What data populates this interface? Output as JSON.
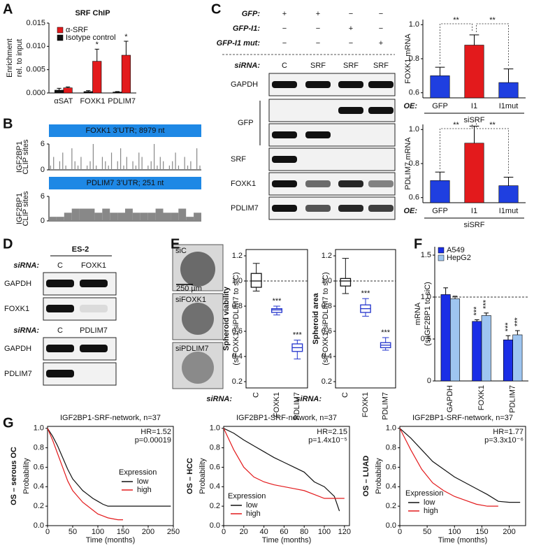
{
  "panel_labels": [
    "A",
    "B",
    "C",
    "D",
    "E",
    "F",
    "G"
  ],
  "chart_data": [
    {
      "type": "bar",
      "title": "SRF ChIP",
      "ylabel": [
        "Enrichment",
        "rel. to input"
      ],
      "categories": [
        "αSAT",
        "FOXK1",
        "PDLIM7"
      ],
      "series": [
        {
          "name": "α-SRF",
          "color": "#e31a1c",
          "values": [
            0.0011,
            0.0068,
            0.0081
          ],
          "errors": [
            0.0002,
            0.0026,
            0.003
          ],
          "significance": [
            null,
            "*",
            "*"
          ]
        },
        {
          "name": "Isotype control",
          "color": "#111111",
          "values": [
            0.0006,
            0.0003,
            0.0002
          ],
          "errors": [
            0.0004,
            0.0002,
            0.0001
          ]
        }
      ],
      "ylim": [
        0,
        0.015
      ],
      "yticks": [
        {
          "value": 0,
          "label": "0.000"
        },
        0.005,
        {
          "value": 0.01,
          "label": "0.010"
        },
        0.015
      ]
    },
    {
      "type": "spikes",
      "title": "FOXK1 3’UTR; 8979 nt",
      "ylabel": [
        "IGF2BP1",
        "CLIP sites"
      ],
      "color": "#888888",
      "ylim": [
        0,
        6
      ],
      "yticks": [
        0,
        6
      ],
      "values": [
        1,
        3,
        0,
        2,
        4,
        1,
        0,
        5,
        2,
        1,
        3,
        0,
        1,
        2,
        6,
        1,
        0,
        3,
        2,
        1,
        4,
        0,
        2,
        5,
        1,
        3,
        0,
        2,
        1,
        4,
        3,
        0,
        1,
        2,
        6,
        1,
        3,
        2,
        0,
        1,
        2,
        4,
        1,
        0,
        3,
        1,
        2,
        0,
        5,
        1
      ]
    },
    {
      "type": "steps",
      "title": "PDLIM7 3’UTR; 251 nt",
      "ylabel": [
        "IGF2BP1",
        "CLIP sites"
      ],
      "color": "#888888",
      "ylim": [
        0,
        6
      ],
      "yticks": [
        0,
        6
      ],
      "values": [
        1,
        1,
        2,
        3,
        3,
        3,
        2,
        3,
        2,
        2,
        3,
        2,
        2,
        2,
        3,
        2,
        2,
        3,
        1,
        2
      ]
    },
    {
      "type": "bar",
      "ylabel": "FOXK1 mRNA",
      "categories": [
        "GFP",
        "I1",
        "I1mut"
      ],
      "values": [
        0.7,
        0.88,
        0.66
      ],
      "errors": [
        0.05,
        0.06,
        0.08
      ],
      "colors": [
        "#1f3fe0",
        "#e31a1c",
        "#1f3fe0"
      ],
      "xlabel": "OE:",
      "group_label": "siSRF",
      "comparisons": [
        {
          "pair": [
            0,
            1
          ],
          "label": "**"
        },
        {
          "pair": [
            1,
            2
          ],
          "label": "**"
        }
      ],
      "ylim": [
        0.57,
        1.03
      ],
      "yticks": [
        0.6,
        0.8,
        {
          "value": 1,
          "label": "1.0"
        }
      ]
    },
    {
      "type": "bar",
      "ylabel": "PDLIM7 mRNA",
      "categories": [
        "GFP",
        "I1",
        "I1mut"
      ],
      "values": [
        0.7,
        0.92,
        0.67
      ],
      "errors": [
        0.05,
        0.1,
        0.05
      ],
      "colors": [
        "#1f3fe0",
        "#e31a1c",
        "#1f3fe0"
      ],
      "xlabel": "OE:",
      "group_label": "siSRF",
      "comparisons": [
        {
          "pair": [
            0,
            1
          ],
          "label": "**"
        },
        {
          "pair": [
            1,
            2
          ],
          "label": "**"
        }
      ],
      "ylim": [
        0.57,
        1.03
      ],
      "yticks": [
        0.6,
        0.8,
        {
          "value": 1,
          "label": "1.0"
        }
      ]
    },
    {
      "type": "box",
      "ylabel": [
        "Spheroid viability",
        "(siFOXK1/siPDLIM7 to siC)"
      ],
      "xlabel": "siRNA:",
      "categories": [
        "C",
        "FOXK1",
        "PDLIM7"
      ],
      "colors": [
        "#111111",
        "#2233cc",
        "#2233cc"
      ],
      "ref_line": 1,
      "boxes": [
        {
          "min": 0.92,
          "q1": 0.95,
          "median": 1.0,
          "q3": 1.06,
          "max": 1.14
        },
        {
          "min": 0.73,
          "q1": 0.75,
          "median": 0.77,
          "q3": 0.78,
          "max": 0.8
        },
        {
          "min": 0.38,
          "q1": 0.44,
          "median": 0.47,
          "q3": 0.5,
          "max": 0.53
        }
      ],
      "significance": [
        null,
        "***",
        "***"
      ],
      "ylim": [
        0.15,
        1.25
      ],
      "yticks": [
        0.2,
        0.4,
        0.6,
        0.8,
        {
          "value": 1,
          "label": "1.0"
        },
        1.2
      ]
    },
    {
      "type": "box",
      "ylabel": [
        "Spheroid area",
        "(siFOXK1/siPDLIM7 to siC)"
      ],
      "xlabel": "siRNA:",
      "categories": [
        "C",
        "FOXK1",
        "PDLIM7"
      ],
      "colors": [
        "#111111",
        "#2233cc",
        "#2233cc"
      ],
      "ref_line": 1,
      "boxes": [
        {
          "min": 0.9,
          "q1": 0.96,
          "median": 1.0,
          "q3": 1.02,
          "max": 1.18
        },
        {
          "min": 0.72,
          "q1": 0.75,
          "median": 0.78,
          "q3": 0.81,
          "max": 0.86
        },
        {
          "min": 0.45,
          "q1": 0.47,
          "median": 0.49,
          "q3": 0.51,
          "max": 0.55
        }
      ],
      "significance": [
        null,
        "***",
        "***"
      ],
      "ylim": [
        0.15,
        1.25
      ],
      "yticks": [
        0.2,
        0.4,
        0.6,
        0.8,
        {
          "value": 1,
          "label": "1.0"
        },
        1.2
      ]
    },
    {
      "type": "bar",
      "ylabel": [
        "mRNA",
        "(siIGF2BP1 to siC)"
      ],
      "categories": [
        "GAPDH",
        "FOXK1",
        "PDLIM7"
      ],
      "ref_line": 1,
      "series": [
        {
          "name": "A549",
          "color": "#1a2ee6",
          "values": [
            1.03,
            0.71,
            0.49
          ],
          "errors": [
            0.08,
            0.02,
            0.05
          ],
          "significance": [
            null,
            "***",
            "***"
          ]
        },
        {
          "name": "HepG2",
          "color": "#9ec5f0",
          "values": [
            0.98,
            0.78,
            0.55
          ],
          "errors": [
            0.03,
            0.03,
            0.05
          ],
          "significance": [
            null,
            "***",
            "***"
          ]
        }
      ],
      "ylim": [
        0,
        1.6
      ],
      "yticks": [
        0,
        0.5,
        {
          "value": 1,
          "label": "1.0"
        },
        1.5
      ]
    },
    {
      "type": "km",
      "title": "IGF2BP1-SRF-network, n=37",
      "ylabel": "OS – serous OC",
      "ylabel2": "Probability",
      "xlabel": "Time (months)",
      "annotations": [
        "HR=1.52",
        "p=0.00019"
      ],
      "legend_title": "Expression",
      "x": [
        0,
        10,
        20,
        30,
        40,
        50,
        60,
        70,
        80,
        90,
        100,
        110,
        120,
        130,
        140,
        150,
        170,
        200,
        245
      ],
      "series": [
        {
          "name": "low",
          "color": "#111111",
          "values": [
            1,
            0.92,
            0.82,
            0.7,
            0.58,
            0.48,
            0.42,
            0.36,
            0.32,
            0.28,
            0.25,
            0.22,
            0.2,
            0.2,
            0.2,
            0.2,
            0.2,
            0.2,
            0.2
          ]
        },
        {
          "name": "high",
          "color": "#e31a1c",
          "values": [
            1,
            0.88,
            0.74,
            0.6,
            0.46,
            0.36,
            0.3,
            0.24,
            0.2,
            0.16,
            0.12,
            0.1,
            0.08,
            0.07,
            0.06,
            0.06,
            null,
            null,
            null
          ]
        }
      ],
      "xlim": [
        0,
        250
      ],
      "xticks": [
        0,
        50,
        100,
        150,
        200,
        250
      ],
      "ylim": [
        0,
        1.02
      ],
      "yticks": [
        {
          "value": 0,
          "label": "0.0"
        },
        0.2,
        0.4,
        0.6,
        0.8,
        {
          "value": 1,
          "label": "1.0"
        }
      ]
    },
    {
      "type": "km",
      "title": "IGF2BP1-SRF-network, n=37",
      "ylabel": "OS – HCC",
      "ylabel2": "Probability",
      "xlabel": "Time (months)",
      "annotations": [
        "HR=2.15",
        "p=1.4x10⁻⁵"
      ],
      "legend_title": "Expression",
      "x": [
        0,
        10,
        20,
        30,
        40,
        50,
        60,
        70,
        80,
        90,
        100,
        110,
        115,
        120
      ],
      "series": [
        {
          "name": "low",
          "color": "#111111",
          "values": [
            1,
            0.95,
            0.88,
            0.82,
            0.76,
            0.7,
            0.65,
            0.6,
            0.55,
            0.45,
            0.4,
            0.3,
            0.15,
            null
          ]
        },
        {
          "name": "high",
          "color": "#e31a1c",
          "values": [
            1,
            0.78,
            0.6,
            0.5,
            0.45,
            0.42,
            0.4,
            0.38,
            0.36,
            0.32,
            0.28,
            0.28,
            0.28,
            0.28
          ]
        }
      ],
      "xlim": [
        0,
        125
      ],
      "xticks": [
        0,
        20,
        40,
        60,
        80,
        100,
        120
      ],
      "ylim": [
        0,
        1.02
      ],
      "yticks": [
        {
          "value": 0,
          "label": "0.0"
        },
        0.2,
        0.4,
        0.6,
        0.8,
        {
          "value": 1,
          "label": "1.0"
        }
      ]
    },
    {
      "type": "km",
      "title": "IGF2BP1-SRF-network, n=37",
      "ylabel": "OS – LUAD",
      "ylabel2": "Probability",
      "xlabel": "Time (months)",
      "annotations": [
        "HR=1.77",
        "p=3.3x10⁻⁶"
      ],
      "legend_title": "Expression",
      "x": [
        0,
        20,
        40,
        60,
        80,
        100,
        120,
        140,
        160,
        180,
        200,
        220
      ],
      "series": [
        {
          "name": "low",
          "color": "#111111",
          "values": [
            1,
            0.9,
            0.78,
            0.66,
            0.58,
            0.5,
            0.44,
            0.38,
            0.32,
            0.25,
            0.24,
            0.24
          ]
        },
        {
          "name": "high",
          "color": "#e31a1c",
          "values": [
            1,
            0.78,
            0.58,
            0.44,
            0.36,
            0.3,
            0.26,
            0.22,
            0.2,
            0.2,
            null,
            null
          ]
        }
      ],
      "xlim": [
        0,
        230
      ],
      "xticks": [
        0,
        50,
        100,
        150,
        200
      ],
      "ylim": [
        0,
        1.02
      ],
      "yticks": [
        {
          "value": 0,
          "label": "0.0"
        },
        0.2,
        0.4,
        0.6,
        0.8,
        {
          "value": 1,
          "label": "1.0"
        }
      ]
    }
  ],
  "blot_c": {
    "conditions": [
      {
        "label": "GFP:",
        "marks": [
          "+",
          "+",
          "−",
          "−"
        ]
      },
      {
        "label": "GFP-I1:",
        "marks": [
          "−",
          "−",
          "+",
          "−"
        ]
      },
      {
        "label": "GFP-I1 mut:",
        "marks": [
          "−",
          "−",
          "−",
          "+"
        ]
      }
    ],
    "sirna_label": "siRNA:",
    "sirna": [
      "C",
      "SRF",
      "SRF",
      "SRF"
    ],
    "rows": [
      "GAPDH",
      "GFP",
      "SRF",
      "FOXK1",
      "PDLIM7"
    ]
  },
  "blot_d": {
    "title": "ES-2",
    "groups": [
      {
        "sirna_label": "siRNA:",
        "sirna": [
          "C",
          "FOXK1"
        ],
        "rows": [
          "GAPDH",
          "FOXK1"
        ]
      },
      {
        "sirna_label": "siRNA:",
        "sirna": [
          "C",
          "PDLIM7"
        ],
        "rows": [
          "GAPDH",
          "PDLIM7"
        ]
      }
    ]
  },
  "spheroids": {
    "labels": [
      "siC",
      "siFOXK1",
      "siPDLIM7"
    ],
    "scale": "250 µm"
  }
}
